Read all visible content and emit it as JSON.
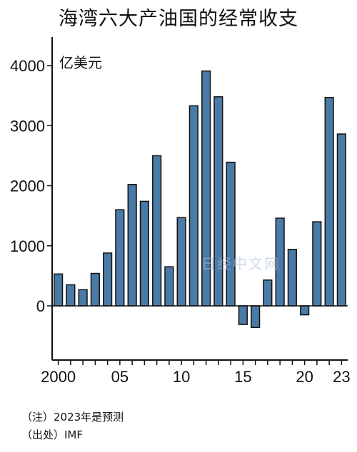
{
  "title": "海湾六大产油国的经常收支",
  "watermark": "日经中文网",
  "notes": {
    "note1": "（注）2023年是预测",
    "note2": "（出处）IMF"
  },
  "chart_data": {
    "type": "bar",
    "title": "海湾六大产油国的经常收支",
    "ylabel": "亿美元",
    "ylim": [
      -900,
      4400
    ],
    "yticks": [
      0,
      1000,
      2000,
      3000,
      4000
    ],
    "ytick_labels": [
      "0",
      "1000",
      "2000",
      "3000",
      "4000"
    ],
    "xtick_labels": [
      {
        "year": 2000,
        "label": "2000"
      },
      {
        "year": 2005,
        "label": "05"
      },
      {
        "year": 2010,
        "label": "10"
      },
      {
        "year": 2015,
        "label": "15"
      },
      {
        "year": 2020,
        "label": "20"
      },
      {
        "year": 2023,
        "label": "23"
      }
    ],
    "categories": [
      2000,
      2001,
      2002,
      2003,
      2004,
      2005,
      2006,
      2007,
      2008,
      2009,
      2010,
      2011,
      2012,
      2013,
      2014,
      2015,
      2016,
      2017,
      2018,
      2019,
      2020,
      2021,
      2022,
      2023
    ],
    "values": [
      530,
      350,
      270,
      540,
      880,
      1600,
      2020,
      1740,
      2500,
      650,
      1470,
      3330,
      3910,
      3480,
      2390,
      -310,
      -360,
      430,
      1460,
      940,
      -150,
      1400,
      3470,
      2860
    ],
    "bar_color": "#4a7aa6",
    "grid": false
  }
}
